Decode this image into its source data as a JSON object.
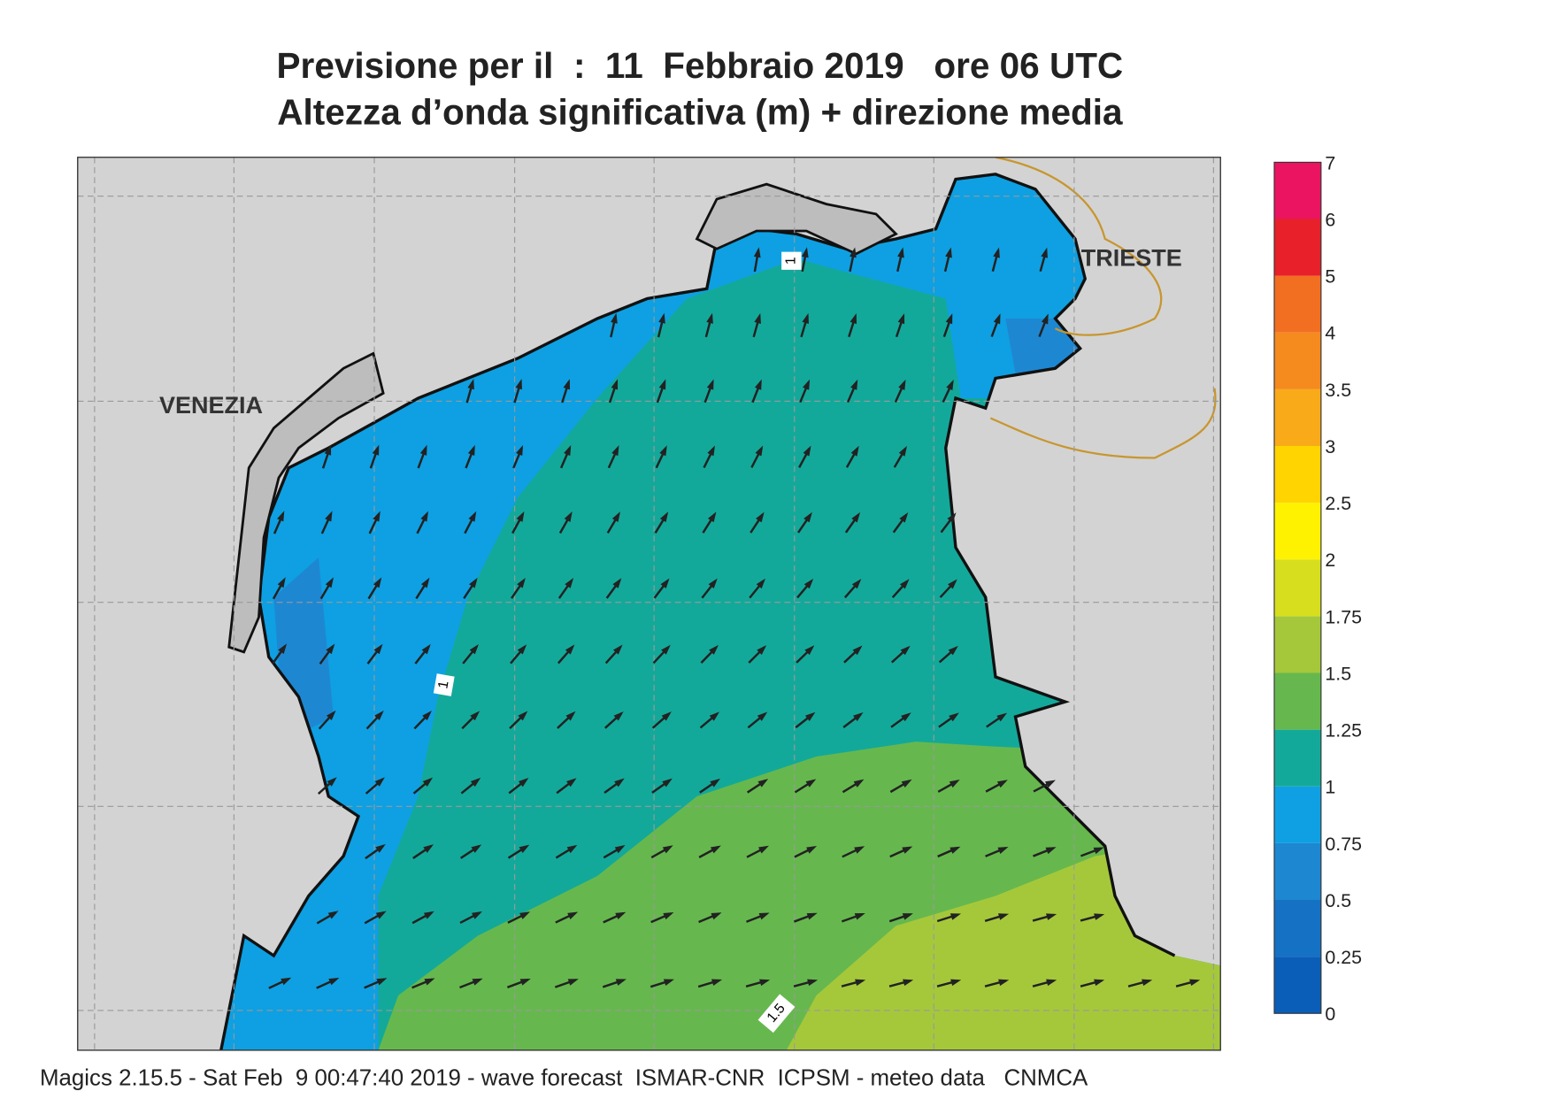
{
  "header": {
    "title_line1": "Previsione per il  :  11  Febbraio 2019   ore 06 UTC",
    "title_line2": "Altezza d’onda significativa (m) + direzione media"
  },
  "map": {
    "labels": [
      "VENEZIA",
      "TRIESTE"
    ],
    "contour_labels": [
      "1",
      "1",
      "1.5"
    ]
  },
  "colorbar": {
    "levels": [
      0,
      0.25,
      0.5,
      0.75,
      1,
      1.25,
      1.5,
      1.75,
      2,
      2.5,
      3,
      3.5,
      4,
      5,
      6,
      7
    ],
    "colors": [
      "#0a5eb8",
      "#1571c4",
      "#1e87d2",
      "#0ea0e2",
      "#13a99a",
      "#66b84e",
      "#a5c83b",
      "#d6de1e",
      "#fff200",
      "#ffd400",
      "#f9aa19",
      "#f58a1f",
      "#f26f22",
      "#e8202a",
      "#ea1460"
    ]
  },
  "footer": "Magics 2.15.5 - Sat Feb  9 00:47:40 2019 - wave forecast  ISMAR-CNR  ICPSM - meteo data   CNMCA"
}
